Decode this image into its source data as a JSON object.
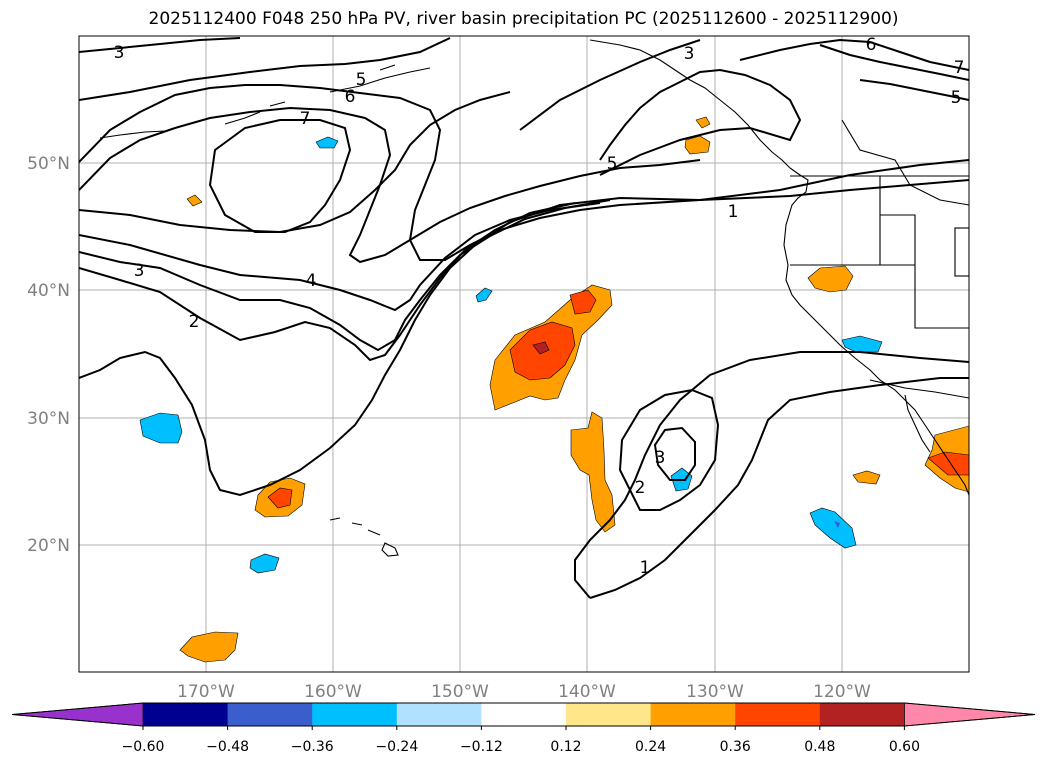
{
  "title": "2025112400 F048 250 hPa PV, river basin precipitation PC (2025112600 - 2025112900)",
  "map": {
    "lat_ticks": [
      "50°N",
      "40°N",
      "30°N",
      "20°N"
    ],
    "lon_ticks": [
      "170°W",
      "160°W",
      "150°W",
      "140°W",
      "130°W",
      "120°W"
    ],
    "contour_labels": [
      "3",
      "5",
      "6",
      "7",
      "3",
      "6",
      "7",
      "5",
      "5",
      "1",
      "4",
      "3",
      "2",
      "3",
      "2",
      "1"
    ]
  },
  "colorbar": {
    "colors": [
      "#9932cc",
      "#000090",
      "#3a5fcd",
      "#00bfff",
      "#b0e2ff",
      "#ffffff",
      "#ffe68a",
      "#ffa000",
      "#ff4500",
      "#b22222",
      "#ff88aa"
    ],
    "labels": [
      "−0.60",
      "−0.48",
      "−0.36",
      "−0.24",
      "−0.12",
      "0.12",
      "0.24",
      "0.36",
      "0.48",
      "0.60"
    ]
  },
  "colors": {
    "orange": "#ffa000",
    "red_orange": "#ff4500",
    "dark_red": "#b22222",
    "blue": "#00bfff",
    "contour": "#000000",
    "grid": "#b0b0b0"
  }
}
